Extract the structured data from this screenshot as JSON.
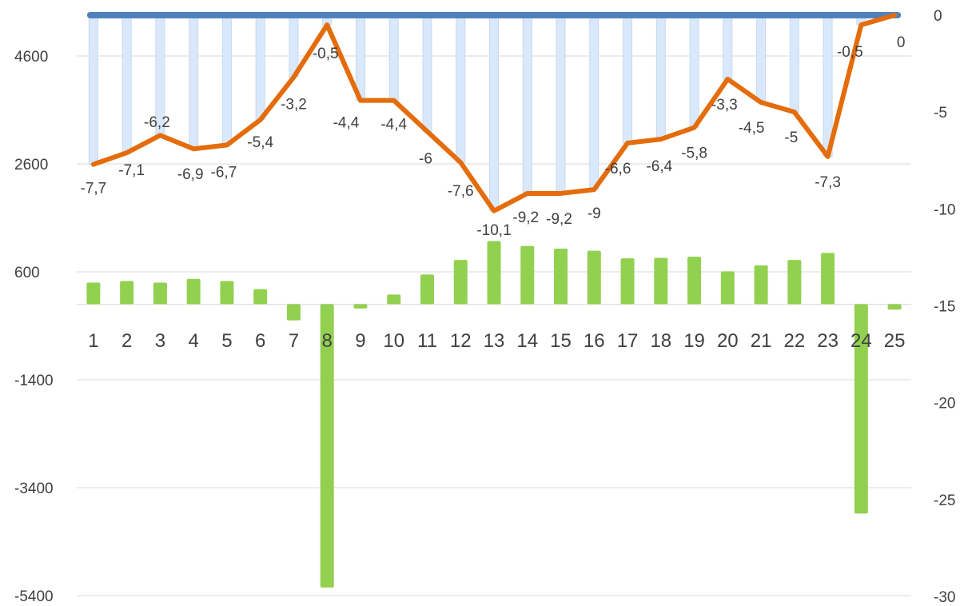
{
  "chart_data": {
    "type": "bar",
    "categories": [
      "1",
      "2",
      "3",
      "4",
      "5",
      "6",
      "7",
      "8",
      "9",
      "10",
      "11",
      "12",
      "13",
      "14",
      "15",
      "16",
      "17",
      "18",
      "19",
      "20",
      "21",
      "22",
      "23",
      "24",
      "25"
    ],
    "left_axis": {
      "ticks": [
        4600,
        2600,
        600,
        -1400,
        -3400,
        -5400
      ],
      "ylim": [
        -5400,
        5200
      ]
    },
    "right_axis": {
      "ticks": [
        0,
        -5,
        -10,
        -15,
        -20,
        -25,
        -30
      ],
      "ylim": [
        -30,
        0
      ]
    },
    "grid": true,
    "legend": "none",
    "colors": {
      "bar": "#92d050",
      "line": "#e46c0a",
      "area": "#dae8fc",
      "area_edge": "#4f81bd"
    },
    "series": [
      {
        "type": "bar",
        "axis": "left",
        "values": [
          400,
          430,
          400,
          470,
          430,
          280,
          -300,
          -5250,
          -80,
          180,
          550,
          820,
          1170,
          1080,
          1030,
          990,
          850,
          860,
          880,
          610,
          720,
          820,
          950,
          -3880,
          -100
        ]
      },
      {
        "type": "line",
        "axis": "right",
        "values": [
          -7.7,
          -7.1,
          -6.2,
          -6.9,
          -6.7,
          -5.4,
          -3.2,
          -0.5,
          -4.4,
          -4.4,
          -6,
          -7.6,
          -10.1,
          -9.2,
          -9.2,
          -9,
          -6.6,
          -6.4,
          -5.8,
          -3.3,
          -4.5,
          -5,
          -7.3,
          -0.5,
          0
        ],
        "data_labels": [
          "-7,7",
          "-7,1",
          "-6,2",
          "-6,9",
          "-6,7",
          "-5,4",
          "-3,2",
          "-0,5",
          "-4,4",
          "-4,4",
          "-6",
          "-7,6",
          "-10,1",
          "-9,2",
          "-9,2",
          "-9",
          "-6,6",
          "-6,4",
          "-5,8",
          "-3,3",
          "-4,5",
          "-5",
          "-7,3",
          "-0,5",
          "0"
        ]
      },
      {
        "type": "area",
        "axis": "right",
        "values": [
          -7.7,
          -7.1,
          -6.2,
          -6.9,
          -6.7,
          -5.4,
          -3.2,
          -0.5,
          -4.4,
          -4.4,
          -6,
          -7.6,
          -10.1,
          -9.2,
          -9.2,
          -9,
          -6.6,
          -6.4,
          -5.8,
          -3.3,
          -4.5,
          -5,
          -7.3,
          -0.5,
          0
        ],
        "baseline": 0
      }
    ]
  }
}
